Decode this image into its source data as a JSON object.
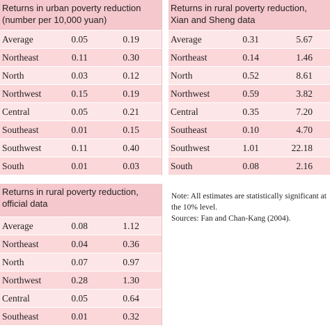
{
  "urban": {
    "title": "Returns in urban poverty reduction (number per 10,000 yuan)",
    "rows": [
      {
        "region": "Average",
        "a": "0.05",
        "b": "0.19"
      },
      {
        "region": "Northeast",
        "a": "0.11",
        "b": "0.30"
      },
      {
        "region": "North",
        "a": "0.03",
        "b": "0.12"
      },
      {
        "region": "Northwest",
        "a": "0.15",
        "b": "0.19"
      },
      {
        "region": "Central",
        "a": "0.05",
        "b": "0.21"
      },
      {
        "region": "Southeast",
        "a": "0.01",
        "b": "0.15"
      },
      {
        "region": "Southwest",
        "a": "0.11",
        "b": "0.40"
      },
      {
        "region": "South",
        "a": "0.01",
        "b": "0.03"
      }
    ]
  },
  "rural_official": {
    "title": "Returns in rural poverty reduction, official data",
    "rows": [
      {
        "region": "Average",
        "a": "0.08",
        "b": "1.12"
      },
      {
        "region": "Northeast",
        "a": "0.04",
        "b": "0.36"
      },
      {
        "region": "North",
        "a": "0.07",
        "b": "0.97"
      },
      {
        "region": "Northwest",
        "a": "0.28",
        "b": "1.30"
      },
      {
        "region": "Central",
        "a": "0.05",
        "b": "0.64"
      },
      {
        "region": "Southeast",
        "a": "0.01",
        "b": "0.32"
      }
    ]
  },
  "rural_xian_sheng": {
    "title": "Returns in rural poverty reduction, Xian and Sheng data",
    "rows": [
      {
        "region": "Average",
        "a": "0.31",
        "b": "5.67"
      },
      {
        "region": "Northeast",
        "a": "0.14",
        "b": "1.46"
      },
      {
        "region": "North",
        "a": "0.52",
        "b": "8.61"
      },
      {
        "region": "Northwest",
        "a": "0.59",
        "b": "3.82"
      },
      {
        "region": "Central",
        "a": "0.35",
        "b": "7.20"
      },
      {
        "region": "Southeast",
        "a": "0.10",
        "b": "4.70"
      },
      {
        "region": "Southwest",
        "a": "1.01",
        "b": "22.18"
      },
      {
        "region": "South",
        "a": "0.08",
        "b": "2.16"
      }
    ]
  },
  "notes": {
    "note": "Note: All estimates are statistically significant at the 10% level.",
    "sources": "Sources: Fan and Chan-Kang (2004)."
  },
  "colors": {
    "header_bg": "#f4c8cc",
    "row_light": "#fde6e7",
    "row_dark": "#fbd7da"
  }
}
